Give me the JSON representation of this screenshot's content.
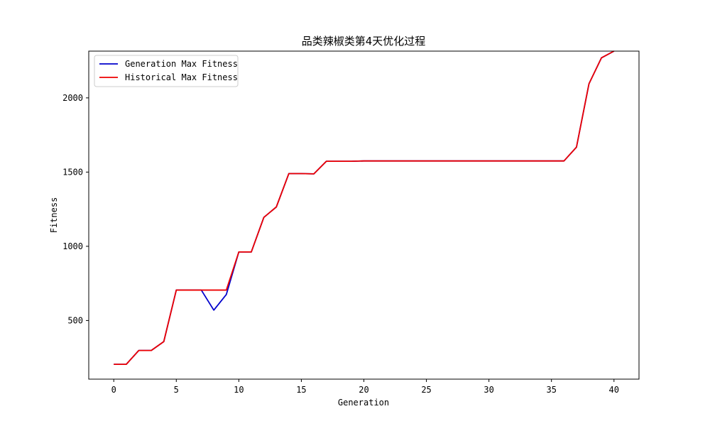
{
  "chart_data": {
    "type": "line",
    "title": "品类辣椒类第4天优化过程",
    "xlabel": "Generation",
    "ylabel": "Fitness",
    "xlim": [
      -2,
      42
    ],
    "ylim": [
      105,
      2315
    ],
    "xticks": [
      0,
      5,
      10,
      15,
      20,
      25,
      30,
      35,
      40
    ],
    "yticks": [
      500,
      1000,
      1500,
      2000
    ],
    "grid": false,
    "legend_position": "upper left",
    "x": [
      0,
      1,
      2,
      3,
      4,
      5,
      6,
      7,
      8,
      9,
      10,
      11,
      12,
      13,
      14,
      15,
      16,
      17,
      18,
      19,
      20,
      21,
      22,
      23,
      24,
      25,
      26,
      27,
      28,
      29,
      30,
      31,
      32,
      33,
      34,
      35,
      36,
      37,
      38,
      39,
      40
    ],
    "series": [
      {
        "name": "Generation Max Fitness",
        "color": "#0000cc",
        "values": [
          205,
          205,
          298,
          298,
          358,
          705,
          705,
          705,
          570,
          675,
          962,
          962,
          1195,
          1265,
          1490,
          1490,
          1488,
          1573,
          1573,
          1573,
          1575,
          1575,
          1575,
          1575,
          1575,
          1575,
          1575,
          1575,
          1575,
          1575,
          1575,
          1575,
          1575,
          1575,
          1575,
          1575,
          1575,
          1668,
          2095,
          2270,
          2315
        ]
      },
      {
        "name": "Historical Max Fitness",
        "color": "#ee0000",
        "values": [
          205,
          205,
          298,
          298,
          358,
          705,
          705,
          705,
          705,
          705,
          962,
          962,
          1195,
          1265,
          1490,
          1490,
          1488,
          1573,
          1573,
          1573,
          1575,
          1575,
          1575,
          1575,
          1575,
          1575,
          1575,
          1575,
          1575,
          1575,
          1575,
          1575,
          1575,
          1575,
          1575,
          1575,
          1575,
          1668,
          2095,
          2270,
          2315
        ]
      }
    ]
  }
}
